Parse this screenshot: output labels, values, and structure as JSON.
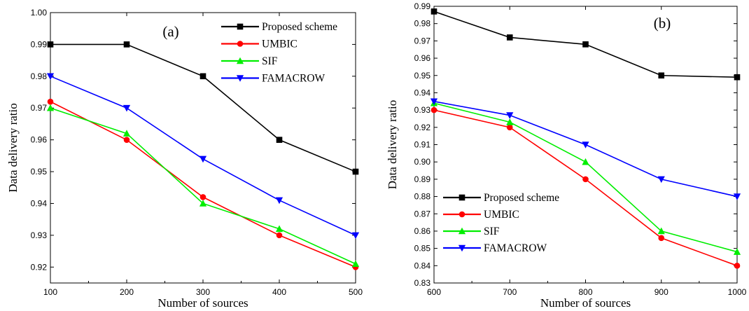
{
  "chart_data": [
    {
      "type": "line",
      "panel_label": "(a)",
      "xlabel": "Number of sources",
      "ylabel": "Data delivery ratio",
      "xlim": [
        100,
        500
      ],
      "ylim": [
        0.915,
        1.0
      ],
      "x_ticks": [
        "100",
        "200",
        "300",
        "400",
        "500"
      ],
      "y_ticks": [
        "0.92",
        "0.93",
        "0.94",
        "0.95",
        "0.96",
        "0.97",
        "0.98",
        "0.99",
        "1.00"
      ],
      "x": [
        100,
        200,
        300,
        400,
        500
      ],
      "legend_position": "top-right",
      "grid": false,
      "series": [
        {
          "name": "Proposed scheme",
          "color": "#000000",
          "marker": "square",
          "values": [
            0.99,
            0.99,
            0.98,
            0.96,
            0.95
          ]
        },
        {
          "name": "UMBIC",
          "color": "#ff0000",
          "marker": "circle",
          "values": [
            0.972,
            0.96,
            0.942,
            0.93,
            0.92
          ]
        },
        {
          "name": "SIF",
          "color": "#00ee00",
          "marker": "triangle-up",
          "values": [
            0.97,
            0.962,
            0.94,
            0.932,
            0.921
          ]
        },
        {
          "name": "FAMACROW",
          "color": "#0000ff",
          "marker": "triangle-down",
          "values": [
            0.98,
            0.97,
            0.954,
            0.941,
            0.93
          ]
        }
      ]
    },
    {
      "type": "line",
      "panel_label": "(b)",
      "xlabel": "Number of sources",
      "ylabel": "Data delivery ratio",
      "xlim": [
        600,
        1000
      ],
      "ylim": [
        0.83,
        0.99
      ],
      "x_ticks": [
        "600",
        "700",
        "800",
        "900",
        "1000"
      ],
      "y_ticks": [
        "0.83",
        "0.84",
        "0.85",
        "0.86",
        "0.87",
        "0.88",
        "0.89",
        "0.90",
        "0.91",
        "0.92",
        "0.93",
        "0.94",
        "0.95",
        "0.96",
        "0.97",
        "0.98",
        "0.99"
      ],
      "x": [
        600,
        700,
        800,
        900,
        1000
      ],
      "legend_position": "bottom-left",
      "grid": false,
      "series": [
        {
          "name": "Proposed scheme",
          "color": "#000000",
          "marker": "square",
          "values": [
            0.987,
            0.972,
            0.968,
            0.95,
            0.949
          ]
        },
        {
          "name": "UMBIC",
          "color": "#ff0000",
          "marker": "circle",
          "values": [
            0.93,
            0.92,
            0.89,
            0.856,
            0.84
          ]
        },
        {
          "name": "SIF",
          "color": "#00ee00",
          "marker": "triangle-up",
          "values": [
            0.934,
            0.923,
            0.9,
            0.86,
            0.848
          ]
        },
        {
          "name": "FAMACROW",
          "color": "#0000ff",
          "marker": "triangle-down",
          "values": [
            0.935,
            0.927,
            0.91,
            0.89,
            0.88
          ]
        }
      ]
    }
  ]
}
